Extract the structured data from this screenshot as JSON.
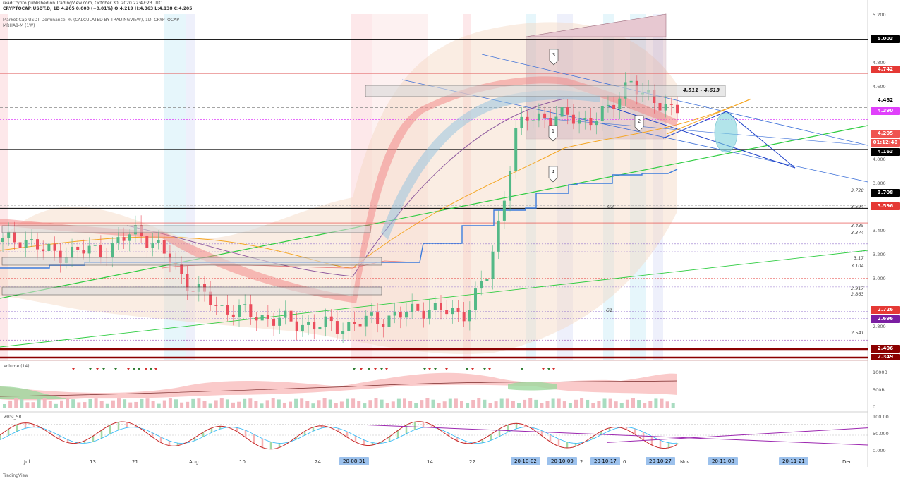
{
  "header": {
    "line1": "readCrypto published on TradingView.com, October 30, 2020 22:47:23 UTC",
    "line2": "CRYPTOCAP:USDT.D, 1D 4.205 0.000 (−0.01%) O:4.219 H:4.363 L:4.138 C:4.205",
    "line3": "Market Cap USDT Dominance, % (CALCULATED BY TRADINGVIEW), 1D, CRYPTOCAP",
    "line4": "MRHA8-M (1W)"
  },
  "price_axis": [
    "5.200",
    "4.800",
    "4.600",
    "4.000",
    "3.800",
    "3.400",
    "3.200",
    "3.000",
    "2.800"
  ],
  "price_boxes": [
    {
      "label": "5.003",
      "color": "#000000"
    },
    {
      "label": "4.742",
      "color": "#e53935"
    },
    {
      "label": "4.482",
      "color": "#ffffff",
      "text": "#000000"
    },
    {
      "label": "4.390",
      "color": "#e040fb"
    },
    {
      "label": "4.205",
      "color": "#ef5350"
    },
    {
      "label": "01:12:40",
      "color": "#ef5350"
    },
    {
      "label": "4.163",
      "color": "#000000"
    },
    {
      "label": "3.708",
      "color": "#000000"
    },
    {
      "label": "3.596",
      "color": "#e53935"
    },
    {
      "label": "2.726",
      "color": "#e53935"
    },
    {
      "label": "2.696",
      "color": "#7b1fa2"
    },
    {
      "label": "2.406",
      "color": "#8b0000"
    },
    {
      "label": "2.349",
      "color": "#8b0000"
    }
  ],
  "level_labels": [
    "3.728",
    "3.594",
    "3.435",
    "3.374",
    "3.17",
    "3.104",
    "2.917",
    "2.863",
    "2.541"
  ],
  "annotations": {
    "zone": "4.511 - 4.613",
    "g2": "G2",
    "g1": "G1",
    "waves": [
      "1",
      "2",
      "3",
      "4"
    ]
  },
  "volume_pane": {
    "title": "Volume (14)",
    "axis": [
      "1000B",
      "500B",
      "0"
    ]
  },
  "rsi_pane": {
    "title": "wRSI_SR",
    "axis": [
      "100.00",
      "50.000",
      "0.000"
    ]
  },
  "x_axis": {
    "labels": [
      "Jul",
      "13",
      "21",
      "Aug",
      "10",
      "24",
      "14",
      "22",
      "2",
      "0",
      "Nov",
      "Dec"
    ],
    "highlighted": [
      "20-08-31",
      "20-10-02",
      "20-10-09",
      "20-10-17",
      "20-10-27",
      "20-11-08",
      "20-11-21"
    ]
  },
  "footer": "TradingView",
  "chart_data": {
    "type": "candlestick",
    "title": "Market Cap USDT Dominance, % (CALCULATED BY TRADINGVIEW), 1D, CRYPTOCAP",
    "ylim": [
      2.34,
      5.23
    ],
    "last": {
      "open": 4.219,
      "high": 4.363,
      "low": 4.138,
      "close": 4.205
    },
    "close_path": [
      [
        0,
        3.45
      ],
      [
        0.03,
        3.48
      ],
      [
        0.06,
        3.38
      ],
      [
        0.09,
        3.36
      ],
      [
        0.12,
        3.38
      ],
      [
        0.16,
        3.4
      ],
      [
        0.2,
        3.55
      ],
      [
        0.25,
        3.3
      ],
      [
        0.28,
        3.1
      ],
      [
        0.32,
        2.95
      ],
      [
        0.38,
        2.88
      ],
      [
        0.44,
        2.82
      ],
      [
        0.5,
        2.8
      ],
      [
        0.55,
        2.85
      ],
      [
        0.6,
        2.9
      ],
      [
        0.63,
        2.95
      ],
      [
        0.68,
        2.88
      ],
      [
        0.72,
        3.2
      ],
      [
        0.74,
        3.7
      ],
      [
        0.76,
        4.3
      ],
      [
        0.78,
        4.4
      ],
      [
        0.82,
        4.42
      ],
      [
        0.86,
        4.38
      ],
      [
        0.9,
        4.45
      ],
      [
        0.93,
        4.72
      ],
      [
        0.95,
        4.55
      ],
      [
        1.0,
        4.48
      ]
    ]
  }
}
